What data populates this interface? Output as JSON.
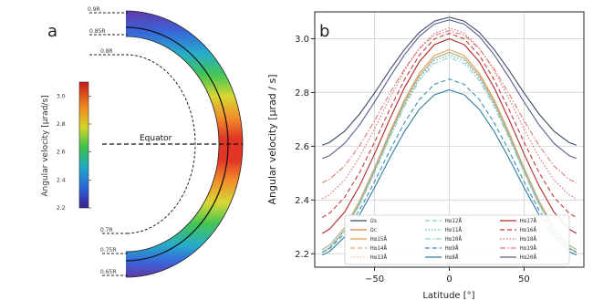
{
  "colors": {
    "background": "#ffffff",
    "grid": "#d9d9d9",
    "spine": "#222222"
  },
  "chart_data": [
    {
      "type": "heatmap",
      "panel_label": "a",
      "subtype": "hemispherical shell angular velocity map",
      "colorbar": {
        "label": "Angular velocity [µrad/s]",
        "ticks": [
          "2.2",
          "2.4",
          "2.6",
          "2.8",
          "3.0"
        ],
        "range": [
          2.2,
          3.1
        ],
        "colormap": "rainbow"
      },
      "annotation": "Equator",
      "contour_labels": [
        "0.9R",
        "0.85R",
        "0.8R",
        "0.7R",
        "0.75R",
        "0.65R"
      ],
      "values_at_latitude_deg": {
        "latitude": [
          90,
          70,
          50,
          30,
          10,
          0,
          -10,
          -30,
          -50,
          -70,
          -90
        ],
        "surface": [
          2.3,
          2.45,
          2.65,
          2.85,
          2.98,
          3.0,
          2.98,
          2.85,
          2.65,
          2.45,
          2.3
        ]
      }
    },
    {
      "type": "line",
      "panel_label": "b",
      "xlabel": "Latitude [°]",
      "ylabel": "Angular velocity [µrad / s]",
      "xlim": [
        -90,
        90
      ],
      "ylim": [
        2.15,
        3.1
      ],
      "xticks": [
        -50,
        0,
        50
      ],
      "yticks": [
        2.2,
        2.4,
        2.6,
        2.8,
        3.0
      ],
      "grid": true,
      "legend_location": "lower center",
      "x": [
        -85,
        -80,
        -70,
        -60,
        -50,
        -40,
        -30,
        -20,
        -10,
        0,
        10,
        20,
        30,
        40,
        50,
        60,
        70,
        80,
        85
      ],
      "series": [
        {
          "name": "Ωs",
          "color": "#3a4a6b",
          "dash": "solid",
          "center": 3.08,
          "edge": 2.6
        },
        {
          "name": "Ωc",
          "color": "#d08a3a",
          "dash": "solid",
          "center": 2.95,
          "edge": 2.2
        },
        {
          "name": "Hα15Å",
          "color": "#e59a4f",
          "dash": "solid",
          "center": 2.96,
          "edge": 2.21
        },
        {
          "name": "Hα14Å",
          "color": "#e8a96a",
          "dash": "dashed",
          "center": 2.95,
          "edge": 2.2
        },
        {
          "name": "Hα13Å",
          "color": "#efbf8f",
          "dash": "dotted",
          "center": 2.94,
          "edge": 2.2
        },
        {
          "name": "Hα12Å",
          "color": "#7fc6c6",
          "dash": "dashed",
          "center": 2.95,
          "edge": 2.21
        },
        {
          "name": "Hα11Å",
          "color": "#5eb7b7",
          "dash": "dotted",
          "center": 2.94,
          "edge": 2.2
        },
        {
          "name": "Hα10Å",
          "color": "#8fd0d0",
          "dash": "dashdot",
          "center": 2.93,
          "edge": 2.2
        },
        {
          "name": "Hα9Å",
          "color": "#3a90b0",
          "dash": "dashed",
          "center": 2.85,
          "edge": 2.2
        },
        {
          "name": "Hα8Å",
          "color": "#2f7ea4",
          "dash": "solid",
          "center": 2.81,
          "edge": 2.19
        },
        {
          "name": "Hα17Å",
          "color": "#b22828",
          "dash": "solid",
          "center": 3.0,
          "edge": 2.27
        },
        {
          "name": "Hα16Å",
          "color": "#c83a3a",
          "dash": "dashed",
          "center": 3.02,
          "edge": 2.33
        },
        {
          "name": "Hα18Å",
          "color": "#d96a6a",
          "dash": "dotted",
          "center": 3.04,
          "edge": 2.4
        },
        {
          "name": "Hα19Å",
          "color": "#e07a7a",
          "dash": "dashdot",
          "center": 3.03,
          "edge": 2.46
        },
        {
          "name": "Hα20Å",
          "color": "#5a5f8c",
          "dash": "solid",
          "center": 3.07,
          "edge": 2.55
        }
      ]
    }
  ]
}
